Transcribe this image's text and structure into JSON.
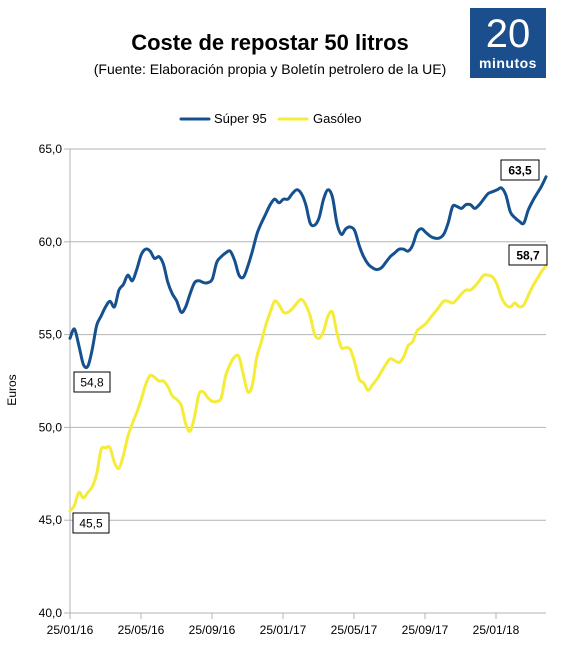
{
  "header": {
    "title": "Coste de repostar 50 litros",
    "subtitle": "(Fuente: Elaboración propia y Boletín petrolero de la UE)"
  },
  "logo": {
    "number": "20",
    "word": "minutos",
    "color": "#1a4e8c"
  },
  "chart_data": {
    "type": "line",
    "title": "Coste de repostar 50 litros",
    "ylabel": "Euros",
    "xlabel": "",
    "ylim": [
      40,
      65
    ],
    "yticks": [
      "40,0",
      "45,0",
      "50,0",
      "55,0",
      "60,0",
      "65,0"
    ],
    "xticks": [
      "25/01/16",
      "25/05/16",
      "25/09/16",
      "25/01/17",
      "25/05/17",
      "25/09/17",
      "25/01/18"
    ],
    "grid": "horizontal",
    "legend": "top-center",
    "series": [
      {
        "name": "Súper 95",
        "color": "#15508f",
        "start_label": "54,8",
        "end_label": "63,5",
        "values": [
          54.8,
          55.3,
          54.4,
          53.4,
          53.3,
          54.2,
          55.5,
          56.0,
          56.5,
          56.8,
          56.5,
          57.4,
          57.7,
          58.2,
          57.9,
          58.5,
          59.3,
          59.6,
          59.5,
          59.1,
          59.2,
          58.8,
          57.8,
          57.2,
          56.8,
          56.2,
          56.5,
          57.2,
          57.8,
          57.9,
          57.8,
          57.8,
          58.0,
          58.9,
          59.2,
          59.4,
          59.5,
          59.0,
          58.2,
          58.1,
          58.7,
          59.5,
          60.4,
          61.0,
          61.5,
          62.0,
          62.3,
          62.1,
          62.3,
          62.3,
          62.6,
          62.8,
          62.6,
          62.0,
          61.0,
          60.9,
          61.3,
          62.3,
          62.8,
          62.4,
          61.0,
          60.4,
          60.7,
          60.8,
          60.6,
          59.8,
          59.2,
          58.8,
          58.6,
          58.5,
          58.6,
          58.9,
          59.2,
          59.4,
          59.6,
          59.6,
          59.5,
          59.8,
          60.5,
          60.7,
          60.5,
          60.3,
          60.2,
          60.2,
          60.4,
          61.0,
          61.9,
          61.9,
          61.8,
          62.0,
          62.0,
          61.8,
          62.0,
          62.3,
          62.6,
          62.7,
          62.8,
          62.9,
          62.5,
          61.6,
          61.3,
          61.1,
          61.0,
          61.7,
          62.2,
          62.6,
          63.0,
          63.5
        ]
      },
      {
        "name": "Gasóleo",
        "color": "#f5ec3a",
        "start_label": "45,5",
        "end_label": "58,7",
        "values": [
          45.5,
          45.8,
          46.5,
          46.2,
          46.5,
          46.8,
          47.5,
          48.8,
          48.9,
          48.9,
          48.1,
          47.8,
          48.5,
          49.5,
          50.2,
          50.8,
          51.5,
          52.3,
          52.8,
          52.7,
          52.5,
          52.5,
          52.2,
          51.7,
          51.5,
          51.2,
          50.2,
          49.8,
          50.6,
          51.8,
          51.9,
          51.6,
          51.4,
          51.4,
          51.6,
          52.8,
          53.4,
          53.8,
          53.8,
          52.8,
          51.9,
          52.3,
          53.8,
          54.6,
          55.5,
          56.2,
          56.8,
          56.6,
          56.2,
          56.2,
          56.4,
          56.7,
          56.9,
          56.6,
          56.0,
          55.0,
          54.8,
          55.2,
          56.0,
          56.2,
          55.1,
          54.3,
          54.3,
          54.2,
          53.5,
          52.6,
          52.4,
          52.0,
          52.3,
          52.6,
          53.0,
          53.4,
          53.7,
          53.6,
          53.5,
          53.8,
          54.4,
          54.6,
          55.2,
          55.4,
          55.6,
          55.9,
          56.2,
          56.5,
          56.8,
          56.8,
          56.7,
          56.9,
          57.2,
          57.4,
          57.4,
          57.6,
          57.9,
          58.2,
          58.2,
          58.1,
          57.7,
          57.0,
          56.6,
          56.5,
          56.7,
          56.5,
          56.6,
          57.1,
          57.6,
          58.0,
          58.4,
          58.7
        ]
      }
    ]
  }
}
